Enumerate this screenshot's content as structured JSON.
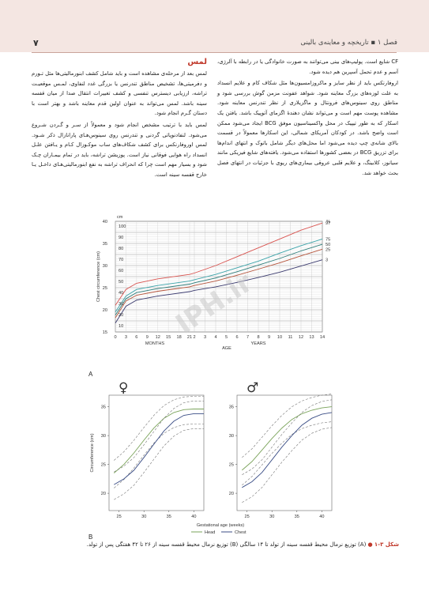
{
  "header": {
    "page_number": "۷",
    "running_head": "فصل ۱  ▪  تاریخچه و معاینه‌ی بالینی"
  },
  "right_column": {
    "paragraphs": [
      "CF شایع است. پولیپ‌های بینی می‌توانند به صورت خانوادگی یا در رابطه با آلرژی، آسم و عدم تحمل آسپرین هم دیده شود.",
      "اروفارنکس باید از نظر سایز و ماکروزامسیون‌ها مثل شکاف کام و علایم انسداد به علت لوزه‌های بزرگ معاینه شود. شواهد عفونت مزمن گوش بررسی شود و مناطق روی سینوس‌های فرونتال و ماگزیلاری از نظر تندرنس معاینه شود. مشاهده پوست مهم است و می‌تواند نشان دهندهٔ اگزمای آتوپیک باشد. یافتن یک اسکار که به طور تیپیک در محل واکسیناسیون موفق BCG ایجاد می‌شود ممکن است واضح باشد. در کودکان آمریکای شمالی، این اسکارها معمولاً در قسمت بالای شانه‌ی چپ دیده می‌شود اما محل‌های دیگر شامل باتوک و انتهای اندام‌ها برای تزریق BCG در بعضی کشورها استفاده می‌شود. یافته‌های شایع فیزیکی مانند سیانوز، کلابینگ، و علایم قلبی عروقی بیماری‌های ریوی با جزئیات در انتهای فصل بحث خواهد شد."
    ]
  },
  "left_column": {
    "heading": "لمس",
    "paragraphs": [
      "لمس بعد از مرحله‌ی مشاهده است و باید شامل کشف ابنورمالیتی‌ها مثل تـورم و دفرمیتی‌ها، تشخیص مناطق تندرنس یا بزرگی غدد لنفاوی، لمـس موقعیـت تراشه، ارزیابی دیسترس تنفسی و کشف تغییرات انتقال صدا از میان قفسه سینه باشد. لمس می‌تواند به عنوان اولین قدم معاینه باشد و بهتر است با دستان گـرم انجام شود.",
      "لمس باید با ترتیب مشخص انجام شود و معمولاً از سـر و گـردن شـروع می‌شود. لنفادنوپاتی گردنی و تندرنس روی سینوس‌هـای پارانازال ذکر شـود. لمس اوروفارنکس برای کشف شکاف‌های ساب موکـوزال کـام و یـافتن علـل انسداد راه هوایی فوقانی نیاز است. پوزیشن تراشه، باید در تمام بیمـاران چـک شود و بسیار مهم است چرا که انحراف تراشه به نفع ابنورمالیتی‌هـای داخـل یـا خارج قفسه سینه است."
    ]
  },
  "watermark": "IPH.ir",
  "figure_a": {
    "panel_label": "A",
    "y_label": "Chest circumference (cm)",
    "y_unit_top": "cm",
    "x_label": "AGE",
    "x_sub_months": "MONTHS",
    "x_sub_years": "YEARS",
    "pct_header": "%",
    "left_ticks": [
      "15",
      "20",
      "25",
      "30",
      "35",
      "40"
    ],
    "inner_ticks": [
      "10",
      "20",
      "30",
      "40",
      "50",
      "60",
      "70",
      "80",
      "90",
      "100"
    ],
    "month_ticks": [
      "0",
      "3",
      "6",
      "9",
      "12",
      "15",
      "18",
      "21",
      "2"
    ],
    "year_ticks": [
      "3",
      "4",
      "5",
      "6",
      "7",
      "8",
      "9",
      "10",
      "11",
      "12",
      "13",
      "14"
    ]
  },
  "figure_b": {
    "panel_label": "B",
    "female_symbol": "♀",
    "male_symbol": "♂",
    "y_label": "Circumference (cm)",
    "x_label": "Gestational age (weeks)",
    "y_ticks": [
      "20",
      "25",
      "30",
      "35"
    ],
    "x_ticks": [
      "25",
      "30",
      "35",
      "40"
    ],
    "legend_head": "Head",
    "legend_chest": "Chest"
  },
  "chart_data": [
    {
      "type": "line",
      "title": "",
      "xlabel": "AGE",
      "ylabel": "Chest circumference (cm)",
      "x_units": "age (months 0–21, then years 2–14)",
      "x": [
        "0m",
        "3m",
        "6m",
        "12m",
        "21m",
        "2y",
        "4y",
        "6y",
        "8y",
        "10y",
        "12y",
        "14y"
      ],
      "ylim": [
        15,
        40
      ],
      "series": [
        {
          "name": "97",
          "color": "#d9534f",
          "values": [
            21.0,
            24.6,
            26.0,
            27.0,
            28.0,
            28.3,
            30.0,
            32.0,
            34.0,
            36.0,
            38.0,
            39.6
          ]
        },
        {
          "name": "75",
          "color": "#3aa3a9",
          "values": [
            19.5,
            23.1,
            24.6,
            25.5,
            26.5,
            26.8,
            28.0,
            29.5,
            31.0,
            32.8,
            34.5,
            36.0
          ]
        },
        {
          "name": "50",
          "color": "#2e7d7a",
          "values": [
            18.8,
            22.5,
            23.9,
            24.8,
            25.8,
            26.1,
            27.2,
            28.6,
            30.1,
            31.6,
            33.3,
            34.8
          ]
        },
        {
          "name": "25",
          "color": "#b5533a",
          "values": [
            18.2,
            22.0,
            23.3,
            24.2,
            25.2,
            25.5,
            26.5,
            27.8,
            29.2,
            30.6,
            32.2,
            33.7
          ]
        },
        {
          "name": "3",
          "color": "#3a3a6e",
          "values": [
            17.0,
            20.8,
            22.2,
            23.1,
            24.1,
            24.4,
            25.2,
            26.2,
            27.3,
            28.5,
            29.9,
            31.3
          ]
        }
      ],
      "legend": "right side, percentile numbers"
    },
    {
      "type": "line",
      "title": "♀",
      "xlabel": "Gestational age (weeks)",
      "ylabel": "Circumference (cm)",
      "x": [
        24,
        26,
        28,
        30,
        32,
        34,
        36,
        38,
        40,
        42
      ],
      "ylim": [
        17,
        37
      ],
      "xlim": [
        23,
        42
      ],
      "series": [
        {
          "name": "Head",
          "color": "#7aa35a",
          "values": [
            23.5,
            25.0,
            27.0,
            29.2,
            31.3,
            33.0,
            34.0,
            34.5,
            34.6,
            34.6
          ]
        },
        {
          "name": "Chest",
          "color": "#3b4e86",
          "values": [
            21.5,
            22.5,
            24.0,
            26.2,
            28.5,
            30.8,
            32.5,
            33.5,
            33.8,
            33.8
          ]
        }
      ]
    },
    {
      "type": "line",
      "title": "♂",
      "xlabel": "Gestational age (weeks)",
      "ylabel": "",
      "x": [
        24,
        26,
        28,
        30,
        32,
        34,
        36,
        38,
        40,
        42
      ],
      "ylim": [
        17,
        37
      ],
      "xlim": [
        23,
        42
      ],
      "series": [
        {
          "name": "Head",
          "color": "#7aa35a",
          "values": [
            24.0,
            25.5,
            27.5,
            29.5,
            31.3,
            32.8,
            33.8,
            34.4,
            34.8,
            35.0
          ]
        },
        {
          "name": "Chest",
          "color": "#3b4e86",
          "values": [
            21.0,
            22.0,
            23.6,
            25.8,
            28.0,
            30.0,
            31.8,
            33.0,
            33.7,
            34.0
          ]
        }
      ]
    }
  ],
  "caption": {
    "number": "شکل ۳-۱",
    "text": "(A) توزیع نرمال محیط قفسه سینه از تولد تا ۱۴ سالگی (B) توزیع نرمال محیط قفسه سینه از ۲۶ تا ۴۲ هفتگی پس از تولد."
  }
}
